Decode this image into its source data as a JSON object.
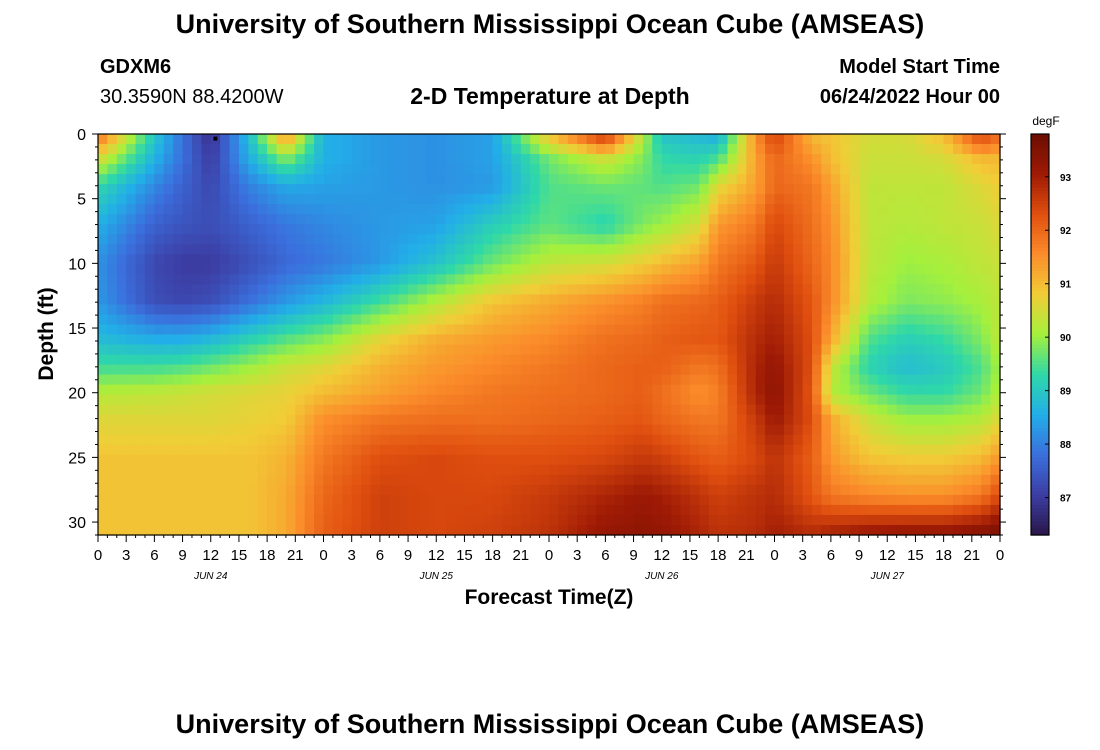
{
  "header": {
    "title": "University of Southern Mississippi Ocean Cube (AMSEAS)",
    "station_id": "GDXM6",
    "station_coords": "30.3590N  88.4200W",
    "subtitle": "2-D Temperature at Depth",
    "model_start_label": "Model Start Time",
    "model_start_value": "06/24/2022 Hour 00",
    "footer_title": "University of Southern Mississippi Ocean Cube (AMSEAS)"
  },
  "chart_data": {
    "type": "heatmap",
    "title": "2-D Temperature at Depth",
    "xlabel": "Forecast Time(Z)",
    "ylabel": "Depth (ft)",
    "x_hours": [
      0,
      3,
      6,
      9,
      12,
      15,
      18,
      21,
      24,
      27,
      30,
      33,
      36,
      39,
      42,
      45,
      48,
      51,
      54,
      57,
      60,
      63,
      66,
      69,
      72,
      75,
      78,
      81,
      84,
      87,
      90,
      93,
      96
    ],
    "x_tick_labels": [
      "0",
      "3",
      "6",
      "9",
      "12",
      "15",
      "18",
      "21",
      "0",
      "3",
      "6",
      "9",
      "12",
      "15",
      "18",
      "21",
      "0",
      "3",
      "6",
      "9",
      "12",
      "15",
      "18",
      "21",
      "0",
      "3",
      "6",
      "9",
      "12",
      "15",
      "18",
      "21",
      "0"
    ],
    "x_day_labels": [
      {
        "label": "JUN 24",
        "hour": 12
      },
      {
        "label": "JUN 25",
        "hour": 36
      },
      {
        "label": "JUN 26",
        "hour": 60
      },
      {
        "label": "JUN 27",
        "hour": 84
      }
    ],
    "y_ticks": [
      0,
      5,
      10,
      15,
      20,
      25,
      30
    ],
    "ylim": [
      0,
      31
    ],
    "xlim": [
      0,
      96
    ],
    "colorbar": {
      "label": "degF",
      "ticks": [
        87,
        88,
        89,
        90,
        91,
        92,
        93
      ],
      "range": [
        86.3,
        93.8
      ],
      "colors": [
        "#2a1648",
        "#3c3ea4",
        "#3b6fdd",
        "#22aee8",
        "#2fd8a8",
        "#a5f03c",
        "#f1cd37",
        "#fb8c2a",
        "#e04f0f",
        "#9e1a05",
        "#6c0d02"
      ]
    },
    "depths_ft": [
      0,
      2,
      4,
      7,
      10,
      13,
      16,
      18,
      20,
      22,
      25,
      28,
      31
    ],
    "hours": [
      0,
      6,
      9,
      12,
      16,
      20,
      24,
      30,
      36,
      42,
      48,
      54,
      58,
      60,
      64,
      66,
      70,
      72,
      76,
      78,
      82,
      86,
      90,
      94,
      96
    ],
    "temperature_degF": [
      [
        92.0,
        89.0,
        87.8,
        86.8,
        88.8,
        91.6,
        88.6,
        88.3,
        88.2,
        88.4,
        91.0,
        92.8,
        90.2,
        88.9,
        88.7,
        88.5,
        91.5,
        92.5,
        91.0,
        90.9,
        90.5,
        90.5,
        91.0,
        92.5,
        92.0
      ],
      [
        90.5,
        88.6,
        87.8,
        87.0,
        88.5,
        89.8,
        88.6,
        88.3,
        88.2,
        88.4,
        89.7,
        90.4,
        89.8,
        89.3,
        89.2,
        89.5,
        91.3,
        92.0,
        91.5,
        91.0,
        90.4,
        90.4,
        90.5,
        91.0,
        91.0
      ],
      [
        89.3,
        88.1,
        87.6,
        87.2,
        88.0,
        88.5,
        88.4,
        88.3,
        88.2,
        88.3,
        89.5,
        89.7,
        89.6,
        89.5,
        89.7,
        90.6,
        91.3,
        92.0,
        91.8,
        91.3,
        90.3,
        90.3,
        90.3,
        90.6,
        90.8
      ],
      [
        88.6,
        87.6,
        87.4,
        87.3,
        87.6,
        87.9,
        88.1,
        88.3,
        88.4,
        89.1,
        89.6,
        89.2,
        89.8,
        90.0,
        90.5,
        91.4,
        91.8,
        92.4,
        91.9,
        91.5,
        90.3,
        90.2,
        90.3,
        90.4,
        90.6
      ],
      [
        88.2,
        87.2,
        87.0,
        87.0,
        87.3,
        87.7,
        87.9,
        88.3,
        88.9,
        89.7,
        90.3,
        90.5,
        90.8,
        91.0,
        91.3,
        91.8,
        92.2,
        92.6,
        92.0,
        91.6,
        90.3,
        90.0,
        90.1,
        90.3,
        90.4
      ],
      [
        88.3,
        87.3,
        87.2,
        87.3,
        87.8,
        88.3,
        88.7,
        89.4,
        90.2,
        90.9,
        91.2,
        91.5,
        91.7,
        91.9,
        92.0,
        92.1,
        92.6,
        92.8,
        92.2,
        91.6,
        90.2,
        89.8,
        89.9,
        90.1,
        90.3
      ],
      [
        88.8,
        88.6,
        88.6,
        88.8,
        89.2,
        89.6,
        89.9,
        90.7,
        91.2,
        91.4,
        91.6,
        91.9,
        92.0,
        92.1,
        92.2,
        92.2,
        92.8,
        93.0,
        92.3,
        91.2,
        89.5,
        89.1,
        89.3,
        89.8,
        90.3
      ],
      [
        89.4,
        89.4,
        89.5,
        89.7,
        90.0,
        90.4,
        90.6,
        91.1,
        91.4,
        91.6,
        91.8,
        92.0,
        92.1,
        92.1,
        91.8,
        91.9,
        92.9,
        93.2,
        92.3,
        90.4,
        89.2,
        88.8,
        89.0,
        89.5,
        90.1
      ],
      [
        90.2,
        90.3,
        90.4,
        90.5,
        90.6,
        90.7,
        91.0,
        91.3,
        91.6,
        91.8,
        91.9,
        92.0,
        92.1,
        91.9,
        91.5,
        91.7,
        92.9,
        93.3,
        92.2,
        90.2,
        89.7,
        89.3,
        89.3,
        89.7,
        90.2
      ],
      [
        90.6,
        90.6,
        90.6,
        90.6,
        90.7,
        90.8,
        91.5,
        91.8,
        91.9,
        91.9,
        92.0,
        92.1,
        92.2,
        92.0,
        91.8,
        91.8,
        92.6,
        93.1,
        92.3,
        91.2,
        90.4,
        90.0,
        90.0,
        90.2,
        90.6
      ],
      [
        90.9,
        90.9,
        90.9,
        90.9,
        90.9,
        91.1,
        91.8,
        92.3,
        92.4,
        92.3,
        92.3,
        92.4,
        92.6,
        92.5,
        92.2,
        92.1,
        92.4,
        92.7,
        92.1,
        91.4,
        90.9,
        90.8,
        90.8,
        91.0,
        91.4
      ],
      [
        90.9,
        90.9,
        90.9,
        90.9,
        90.9,
        91.2,
        92.0,
        92.5,
        92.4,
        92.4,
        92.6,
        92.9,
        93.1,
        93.0,
        92.7,
        92.5,
        92.7,
        92.8,
        92.2,
        91.8,
        91.6,
        91.5,
        91.5,
        91.8,
        92.4
      ],
      [
        90.9,
        90.9,
        90.9,
        90.9,
        90.9,
        91.2,
        92.1,
        92.5,
        92.4,
        92.5,
        92.7,
        93.2,
        93.3,
        93.2,
        92.9,
        92.7,
        92.8,
        93.0,
        92.8,
        93.0,
        93.2,
        93.3,
        93.3,
        93.5,
        93.6
      ]
    ]
  }
}
